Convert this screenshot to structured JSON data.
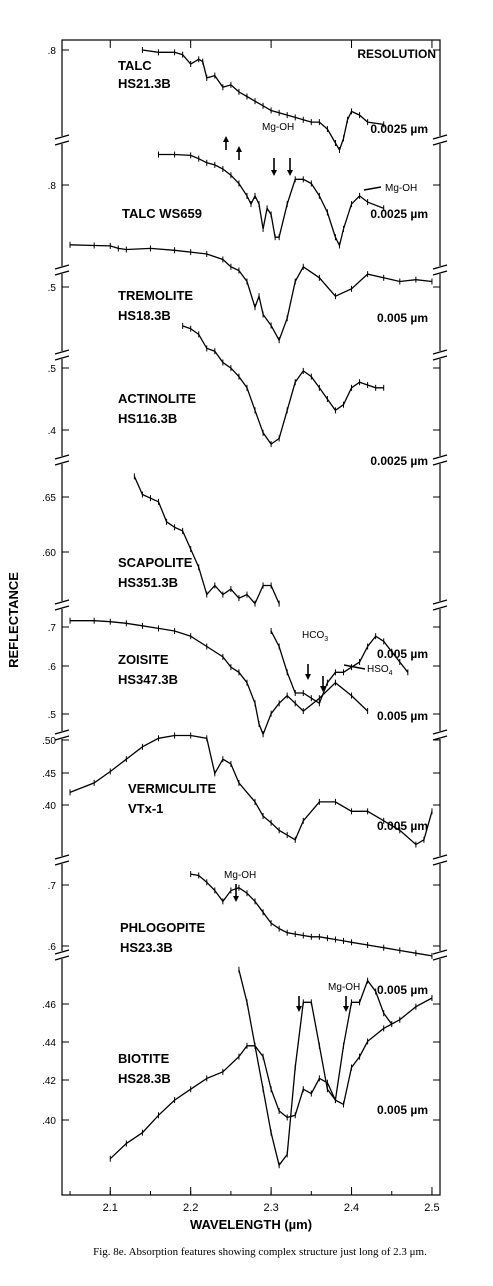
{
  "chart_data": {
    "type": "line",
    "xlabel": "WAVELENGTH (µm)",
    "ylabel": "REFLECTANCE",
    "resolution_header": "RESOLUTION",
    "xlim": [
      2.04,
      2.51
    ],
    "xticks": [
      2.1,
      2.2,
      2.3,
      2.4,
      2.5
    ],
    "xtick_labels": [
      "2.1",
      "2.2",
      "2.3",
      "2.4",
      "2.5"
    ],
    "panels": [
      {
        "name_lines": [
          "TALC",
          "HS21.3B"
        ],
        "resolution": "0.0025 µm",
        "ytick_labels": [
          ".8"
        ],
        "series": [
          {
            "x": [
              2.14,
              2.16,
              2.18,
              2.19,
              2.2,
              2.21,
              2.215,
              2.22,
              2.23,
              2.24,
              2.25,
              2.26,
              2.27,
              2.28,
              2.29,
              2.3,
              2.31,
              2.32,
              2.33,
              2.34,
              2.35,
              2.36,
              2.37,
              2.38,
              2.385,
              2.39,
              2.395,
              2.4,
              2.41,
              2.42,
              2.44
            ],
            "y": [
              0.8,
              0.795,
              0.795,
              0.79,
              0.77,
              0.78,
              0.775,
              0.74,
              0.745,
              0.72,
              0.725,
              0.71,
              0.7,
              0.69,
              0.68,
              0.67,
              0.665,
              0.66,
              0.655,
              0.65,
              0.645,
              0.645,
              0.63,
              0.6,
              0.585,
              0.61,
              0.65,
              0.668,
              0.66,
              0.645,
              0.64
            ]
          }
        ]
      },
      {
        "name_lines": [
          "TALC WS659"
        ],
        "resolution": "0.0025 µm",
        "ytick_labels": [
          ".8"
        ],
        "series": [
          {
            "x": [
              2.16,
              2.18,
              2.2,
              2.21,
              2.22,
              2.23,
              2.24,
              2.25,
              2.26,
              2.27,
              2.275,
              2.28,
              2.285,
              2.29,
              2.295,
              2.3,
              2.305,
              2.31,
              2.32,
              2.33,
              2.34,
              2.35,
              2.36,
              2.37,
              2.38,
              2.385,
              2.39,
              2.4,
              2.41,
              2.42,
              2.44
            ],
            "y": [
              0.8,
              0.8,
              0.798,
              0.79,
              0.78,
              0.775,
              0.765,
              0.75,
              0.73,
              0.7,
              0.68,
              0.7,
              0.68,
              0.62,
              0.67,
              0.655,
              0.6,
              0.6,
              0.68,
              0.74,
              0.74,
              0.73,
              0.7,
              0.66,
              0.6,
              0.58,
              0.62,
              0.68,
              0.7,
              0.685,
              0.67
            ]
          }
        ]
      },
      {
        "name_lines": [
          "TREMOLITE",
          "HS18.3B"
        ],
        "resolution": "0.005 µm",
        "ytick_labels": [
          ".5"
        ],
        "series": [
          {
            "x": [
              2.05,
              2.08,
              2.1,
              2.11,
              2.12,
              2.15,
              2.18,
              2.2,
              2.22,
              2.24,
              2.25,
              2.26,
              2.27,
              2.28,
              2.285,
              2.29,
              2.3,
              2.31,
              2.32,
              2.33,
              2.34,
              2.36,
              2.38,
              2.4,
              2.42,
              2.44,
              2.46,
              2.48,
              2.5
            ],
            "y": [
              0.5,
              0.498,
              0.497,
              0.49,
              0.487,
              0.49,
              0.485,
              0.48,
              0.475,
              0.46,
              0.44,
              0.43,
              0.4,
              0.33,
              0.36,
              0.31,
              0.28,
              0.24,
              0.3,
              0.4,
              0.44,
              0.41,
              0.36,
              0.38,
              0.42,
              0.41,
              0.4,
              0.405,
              0.4
            ]
          }
        ]
      },
      {
        "name_lines": [
          "ACTINOLITE",
          "HS116.3B"
        ],
        "resolution": "0.0025 µm",
        "ytick_labels": [
          ".5",
          ".4"
        ],
        "series": [
          {
            "x": [
              2.19,
              2.2,
              2.21,
              2.22,
              2.23,
              2.24,
              2.25,
              2.26,
              2.27,
              2.28,
              2.29,
              2.3,
              2.31,
              2.32,
              2.33,
              2.34,
              2.35,
              2.36,
              2.37,
              2.38,
              2.39,
              2.4,
              2.41,
              2.42,
              2.43,
              2.44
            ],
            "y": [
              0.48,
              0.475,
              0.465,
              0.44,
              0.435,
              0.415,
              0.405,
              0.39,
              0.37,
              0.33,
              0.29,
              0.27,
              0.28,
              0.33,
              0.38,
              0.4,
              0.39,
              0.37,
              0.35,
              0.33,
              0.34,
              0.37,
              0.38,
              0.375,
              0.37,
              0.37
            ]
          }
        ]
      },
      {
        "name_lines": [
          "SCAPOLITE",
          "HS351.3B"
        ],
        "resolution": "0.005 µm",
        "ytick_labels": [
          ".65",
          ".60"
        ],
        "series": [
          {
            "x": [
              2.13,
              2.14,
              2.15,
              2.16,
              2.17,
              2.18,
              2.19,
              2.2,
              2.21,
              2.22,
              2.23,
              2.24,
              2.25,
              2.26,
              2.27,
              2.28,
              2.29,
              2.3,
              2.31
            ],
            "y": [
              0.65,
              0.64,
              0.638,
              0.636,
              0.625,
              0.622,
              0.62,
              0.61,
              0.6,
              0.585,
              0.59,
              0.585,
              0.588,
              0.583,
              0.585,
              0.58,
              0.59,
              0.59,
              0.58
            ]
          }
        ]
      },
      {
        "name_lines": [
          "ZOISITE",
          "HS347.3B"
        ],
        "resolution": "0.005 µm",
        "ytick_labels": [
          ".7",
          ".6",
          ".5"
        ],
        "series": [
          {
            "x": [
              2.05,
              2.08,
              2.1,
              2.12,
              2.14,
              2.16,
              2.18,
              2.2,
              2.22,
              2.24,
              2.25,
              2.26,
              2.27,
              2.28,
              2.285,
              2.29,
              2.3,
              2.31,
              2.32,
              2.33,
              2.34,
              2.36,
              2.38,
              2.4,
              2.42
            ],
            "y": [
              0.72,
              0.72,
              0.718,
              0.715,
              0.71,
              0.705,
              0.7,
              0.69,
              0.67,
              0.65,
              0.63,
              0.62,
              0.6,
              0.56,
              0.52,
              0.5,
              0.54,
              0.56,
              0.575,
              0.56,
              0.545,
              0.57,
              0.6,
              0.575,
              0.545
            ]
          },
          {
            "x": [
              2.3,
              2.31,
              2.32,
              2.33,
              2.34,
              2.35,
              2.36,
              2.37,
              2.38,
              2.39,
              2.4,
              2.41,
              2.42,
              2.43,
              2.44,
              2.45,
              2.46,
              2.47
            ],
            "y": [
              0.7,
              0.67,
              0.62,
              0.58,
              0.58,
              0.57,
              0.56,
              0.6,
              0.62,
              0.62,
              0.63,
              0.64,
              0.67,
              0.69,
              0.68,
              0.66,
              0.64,
              0.62
            ]
          }
        ]
      },
      {
        "name_lines": [
          "VERMICULITE",
          "VTx-1"
        ],
        "resolution": "0.005 µm",
        "ytick_labels": [
          ".50",
          ".45",
          ".40"
        ],
        "series": [
          {
            "x": [
              2.05,
              2.08,
              2.1,
              2.12,
              2.14,
              2.16,
              2.18,
              2.2,
              2.22,
              2.23,
              2.24,
              2.25,
              2.26,
              2.28,
              2.29,
              2.3,
              2.31,
              2.32,
              2.33,
              2.34,
              2.36,
              2.38,
              2.4,
              2.42,
              2.44,
              2.46,
              2.48,
              2.49,
              2.5
            ],
            "y": [
              0.44,
              0.45,
              0.462,
              0.475,
              0.488,
              0.497,
              0.5,
              0.5,
              0.497,
              0.46,
              0.475,
              0.47,
              0.45,
              0.43,
              0.415,
              0.408,
              0.4,
              0.395,
              0.39,
              0.41,
              0.43,
              0.43,
              0.42,
              0.42,
              0.41,
              0.4,
              0.385,
              0.39,
              0.42
            ]
          }
        ]
      },
      {
        "name_lines": [
          "PHLOGOPITE",
          "HS23.3B"
        ],
        "resolution": "0.005 µm",
        "ytick_labels": [
          ".7",
          ".6"
        ],
        "series": [
          {
            "x": [
              2.2,
              2.21,
              2.22,
              2.23,
              2.24,
              2.25,
              2.26,
              2.27,
              2.28,
              2.29,
              2.3,
              2.31,
              2.32,
              2.33,
              2.34,
              2.35,
              2.36,
              2.37,
              2.38,
              2.39,
              2.4,
              2.42,
              2.44,
              2.46,
              2.48,
              2.5
            ],
            "y": [
              0.7,
              0.695,
              0.67,
              0.64,
              0.6,
              0.64,
              0.65,
              0.63,
              0.6,
              0.56,
              0.52,
              0.5,
              0.485,
              0.48,
              0.475,
              0.47,
              0.47,
              0.465,
              0.46,
              0.455,
              0.45,
              0.44,
              0.43,
              0.42,
              0.41,
              0.4
            ]
          }
        ]
      },
      {
        "name_lines": [
          "BIOTITE",
          "HS28.3B"
        ],
        "resolution": "0.005 µm",
        "ytick_labels": [
          ".46",
          ".44",
          ".42",
          ".40"
        ],
        "series": [
          {
            "x": [
              2.26,
              2.27,
              2.28,
              2.29,
              2.3,
              2.31,
              2.32,
              2.33,
              2.34,
              2.35,
              2.36,
              2.37,
              2.38,
              2.39,
              2.4,
              2.41,
              2.42,
              2.43,
              2.44,
              2.45
            ],
            "y": [
              0.485,
              0.47,
              0.45,
              0.43,
              0.41,
              0.395,
              0.4,
              0.44,
              0.47,
              0.47,
              0.45,
              0.43,
              0.425,
              0.45,
              0.47,
              0.47,
              0.48,
              0.475,
              0.465,
              0.46
            ]
          },
          {
            "x": [
              2.1,
              2.12,
              2.14,
              2.16,
              2.18,
              2.2,
              2.22,
              2.24,
              2.26,
              2.27,
              2.28,
              2.29,
              2.3,
              2.31,
              2.32,
              2.33,
              2.34,
              2.35,
              2.36,
              2.37,
              2.38,
              2.39,
              2.4,
              2.41,
              2.42,
              2.44,
              2.46,
              2.48,
              2.5
            ],
            "y": [
              0.398,
              0.405,
              0.41,
              0.418,
              0.425,
              0.43,
              0.435,
              0.438,
              0.445,
              0.45,
              0.45,
              0.445,
              0.43,
              0.42,
              0.417,
              0.418,
              0.43,
              0.428,
              0.435,
              0.433,
              0.425,
              0.423,
              0.44,
              0.445,
              0.452,
              0.458,
              0.462,
              0.468,
              0.472
            ]
          }
        ]
      }
    ],
    "annotations": {
      "mg_oh": "Mg-OH",
      "hco3_main": "HCO",
      "hco3_sub": "3",
      "hso4_main": "HSO",
      "hso4_sub": "4"
    }
  },
  "caption": {
    "label": "Fig. 8e.",
    "text": "Absorption features showing complex structure just long of 2.3 μm."
  }
}
